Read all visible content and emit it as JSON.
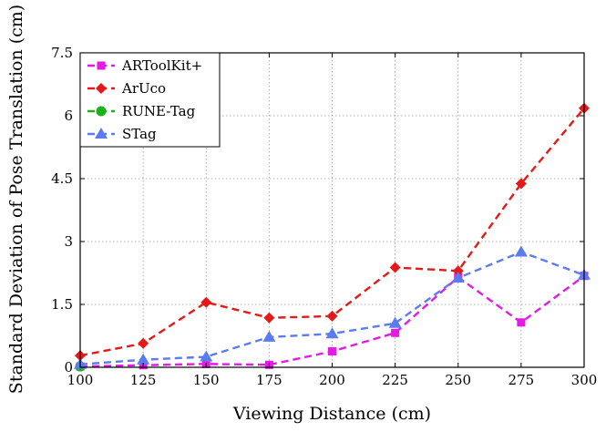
{
  "chart_data": {
    "type": "line",
    "title": "",
    "xlabel": "Viewing Distance (cm)",
    "ylabel": "Standard Deviation of Pose Translation (cm)",
    "x": [
      100,
      125,
      150,
      175,
      200,
      225,
      250,
      275,
      300
    ],
    "xlim": [
      100,
      300
    ],
    "ylim": [
      0,
      7.5
    ],
    "xticks": [
      "100",
      "125",
      "150",
      "175",
      "200",
      "225",
      "250",
      "275",
      "300"
    ],
    "xtick_values": [
      100,
      125,
      150,
      175,
      200,
      225,
      250,
      275,
      300
    ],
    "yticks": [
      "0",
      "1.5",
      "3",
      "4.5",
      "6",
      "7.5"
    ],
    "ytick_values": [
      0,
      1.5,
      3,
      4.5,
      6,
      7.5
    ],
    "grid": true,
    "legend_position": "top-left",
    "series": [
      {
        "name": "ARToolKit+",
        "color": "#e619e6",
        "marker": "square",
        "x": [
          100,
          125,
          150,
          175,
          200,
          225,
          250,
          275,
          300
        ],
        "values": [
          0.02,
          0.05,
          0.08,
          0.06,
          0.38,
          0.82,
          2.15,
          1.07,
          2.18
        ]
      },
      {
        "name": "ArUco",
        "color": "#e61919",
        "marker": "diamond",
        "x": [
          100,
          125,
          150,
          175,
          200,
          225,
          250,
          275,
          300
        ],
        "values": [
          0.28,
          0.57,
          1.55,
          1.18,
          1.22,
          2.38,
          2.3,
          4.38,
          6.18
        ]
      },
      {
        "name": "RUNE-Tag",
        "color": "#19b319",
        "marker": "circle",
        "x": [
          100
        ],
        "values": [
          0.02
        ]
      },
      {
        "name": "STag",
        "color": "#5b7cf0",
        "marker": "triangle",
        "x": [
          100,
          125,
          150,
          175,
          200,
          225,
          250,
          275,
          300
        ],
        "values": [
          0.07,
          0.18,
          0.25,
          0.72,
          0.8,
          1.05,
          2.13,
          2.75,
          2.2
        ]
      }
    ]
  }
}
